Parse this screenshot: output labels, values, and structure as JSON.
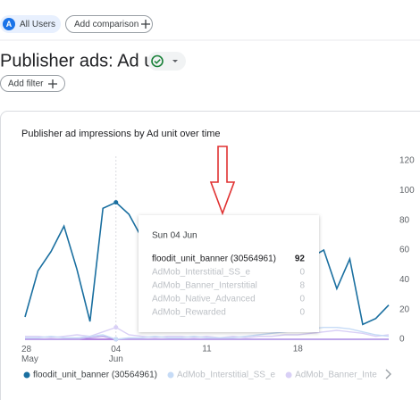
{
  "header": {
    "avatar": "A",
    "segment": "All Users",
    "add_comparison": "Add comparison",
    "title": "Publisher ads: Ad unit",
    "add_filter": "Add filter"
  },
  "chart_data": {
    "type": "line",
    "title": "Publisher ad impressions by Ad unit over time",
    "categories": [
      "28 May",
      null,
      null,
      null,
      null,
      null,
      null,
      "04 Jun",
      null,
      null,
      null,
      null,
      null,
      null,
      "11",
      null,
      null,
      null,
      null,
      null,
      null,
      "18",
      null,
      null,
      null,
      null,
      null,
      null,
      null
    ],
    "series": [
      {
        "name": "floodit_unit_banner (30564961)",
        "color": "#1a6fa0",
        "values": [
          15,
          46,
          59,
          76,
          47,
          12,
          88,
          92,
          84,
          68,
          45,
          30,
          20,
          28,
          40,
          50,
          35,
          22,
          18,
          25,
          38,
          48,
          55,
          60,
          34,
          54,
          10,
          14,
          23
        ]
      },
      {
        "name": "AdMob_Interstitial_SS_e",
        "color": "#c6dbf6",
        "values": [
          1,
          1,
          2,
          1,
          1,
          2,
          3,
          0,
          1,
          1,
          2,
          1,
          1,
          2,
          1,
          1,
          1,
          2,
          3,
          4,
          5,
          6,
          7,
          8,
          8,
          7,
          5,
          3,
          2
        ]
      },
      {
        "name": "AdMob_Banner_Interstitial",
        "color": "#d9d0f6",
        "values": [
          2,
          2,
          1,
          2,
          3,
          2,
          5,
          8,
          3,
          2,
          1,
          2,
          2,
          1,
          2,
          1,
          2,
          1,
          2,
          2,
          3,
          3,
          4,
          5,
          6,
          5,
          4,
          2,
          3
        ]
      },
      {
        "name": "AdMob_Native_Advanced",
        "color": "#b9a3ea",
        "values": [
          0,
          0,
          0,
          0,
          0,
          1,
          2,
          0,
          0,
          0,
          0,
          0,
          0,
          0,
          0,
          0,
          0,
          0,
          0,
          0,
          0,
          0,
          0,
          0,
          0,
          0,
          0,
          0,
          0
        ]
      },
      {
        "name": "AdMob_Rewarded",
        "color": "#9c5fd6",
        "values": [
          0,
          0,
          0,
          0,
          0,
          0,
          0,
          0,
          0,
          0,
          0,
          0,
          0,
          0,
          0,
          0,
          0,
          0,
          0,
          0,
          0,
          0,
          0,
          0,
          0,
          0,
          0,
          0,
          0
        ]
      }
    ],
    "ylim": [
      0,
      120
    ],
    "yticks": [
      0,
      20,
      40,
      60,
      80,
      100,
      120
    ],
    "grid": false,
    "tooltip": {
      "date": "Sun 04 Jun"
    }
  }
}
